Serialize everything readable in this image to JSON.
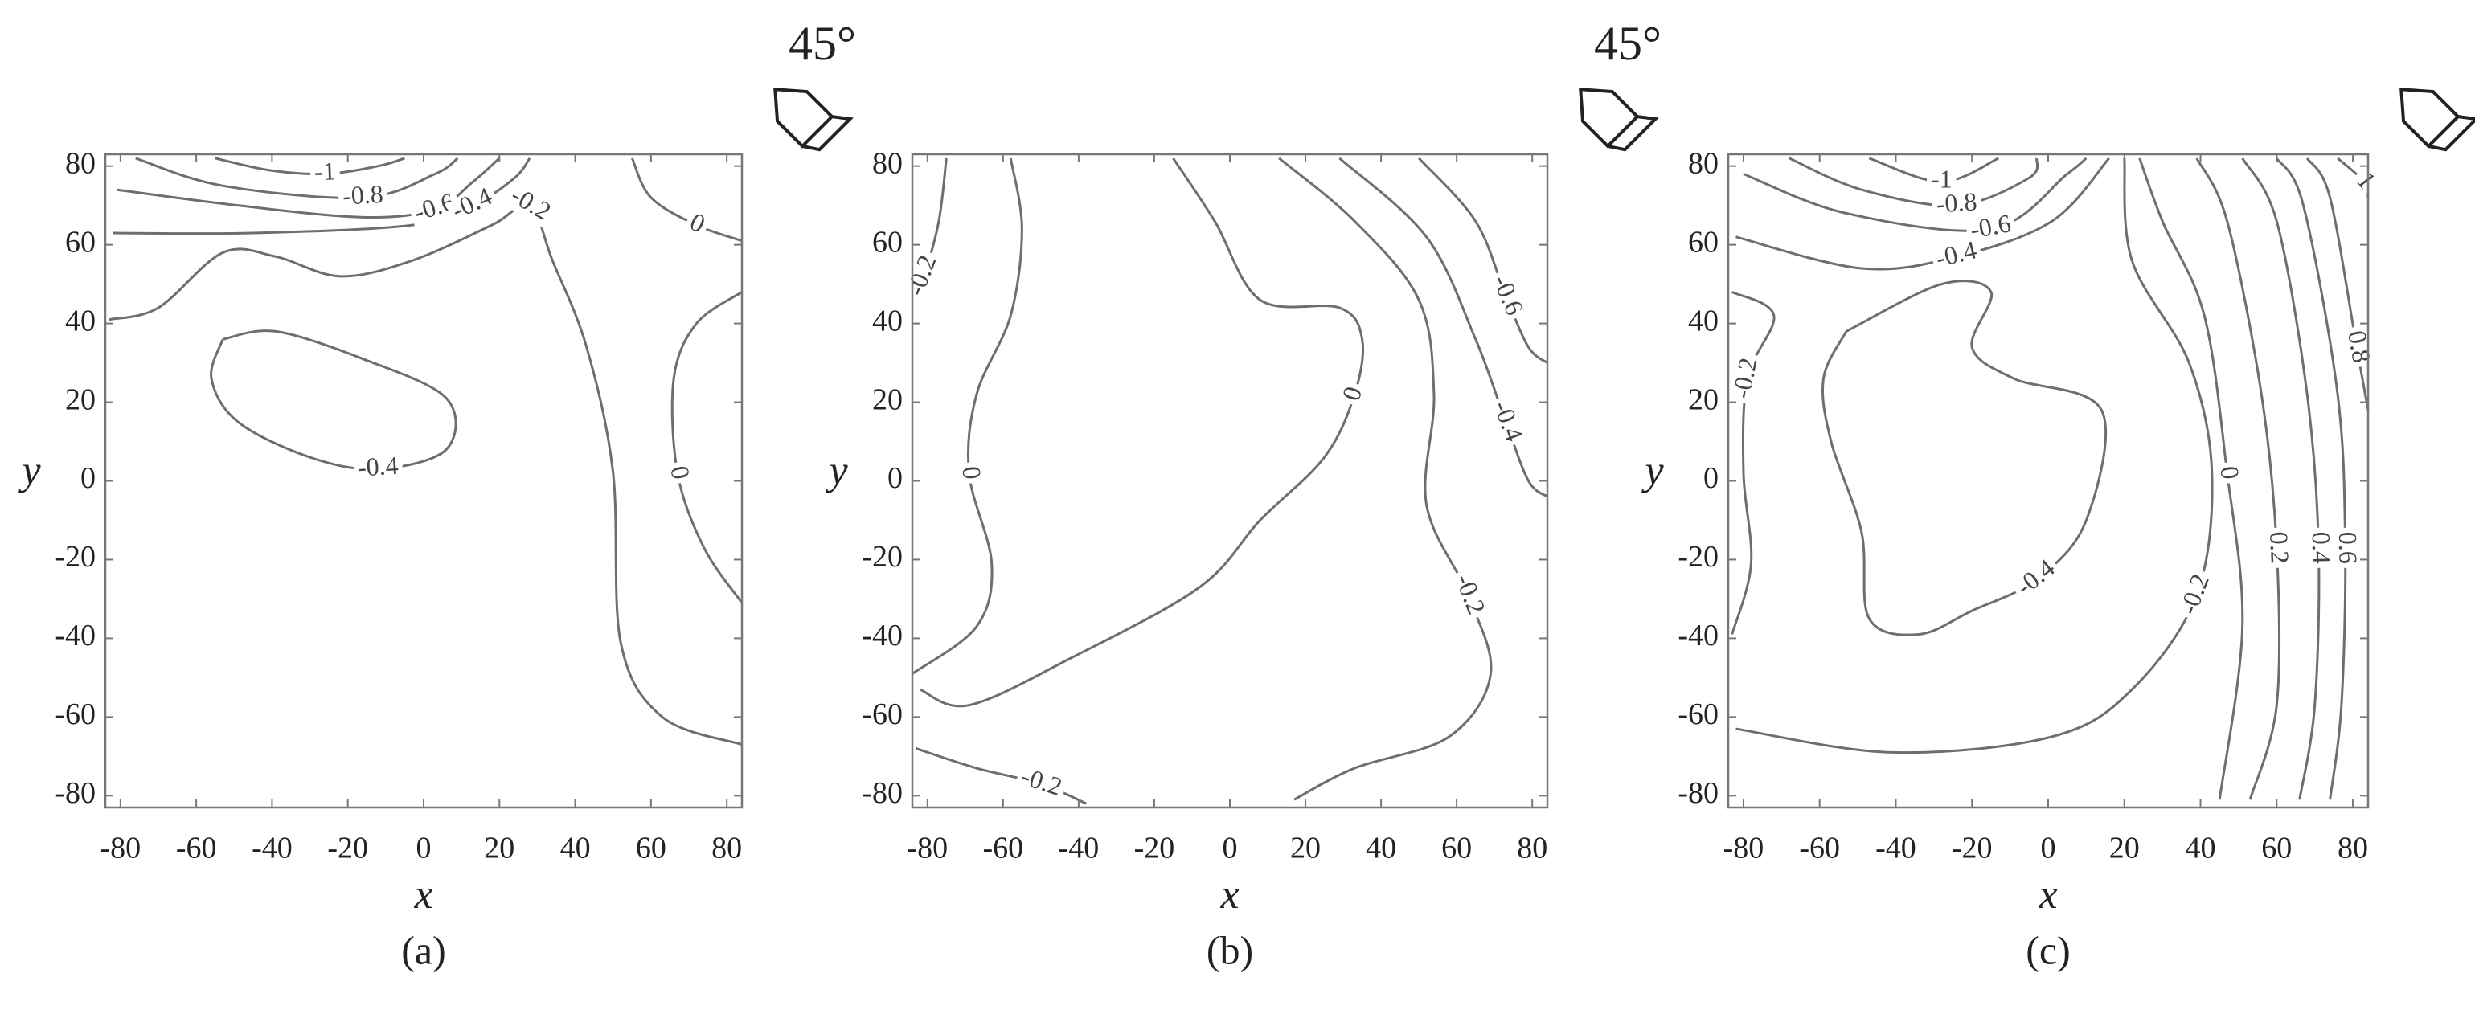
{
  "chart_data": [
    {
      "type": "contour",
      "caption": "(a)",
      "annotation": "45°",
      "x_label": "x",
      "y_label": "y",
      "xlim": [
        -84,
        84
      ],
      "ylim": [
        -83,
        83
      ],
      "xticks": [
        -80,
        -60,
        -40,
        -20,
        0,
        20,
        40,
        60,
        80
      ],
      "yticks": [
        -80,
        -60,
        -40,
        -20,
        0,
        20,
        40,
        60,
        80
      ],
      "color": "#6e6e6e",
      "contours": [
        {
          "level": -1,
          "x": [
            -55,
            -41,
            -26,
            -12,
            -5
          ],
          "y": [
            82,
            79,
            78,
            80,
            82
          ]
        },
        {
          "level": -0.8,
          "x": [
            -76,
            -53,
            -16,
            3,
            9
          ],
          "y": [
            82,
            75,
            72,
            78,
            82
          ]
        },
        {
          "level": -0.6,
          "x": [
            -81,
            -49,
            -16,
            3,
            13,
            20
          ],
          "y": [
            74,
            70,
            67,
            69,
            76,
            82
          ]
        },
        {
          "level": -0.4,
          "x": [
            -82,
            -45,
            -3,
            13,
            24,
            28
          ],
          "y": [
            63,
            63,
            65,
            70,
            77,
            82
          ]
        },
        {
          "level": -0.2,
          "x": [
            -83,
            -70,
            -53,
            -39,
            -22,
            -3,
            18,
            28,
            34,
            43,
            50,
            52,
            63,
            84
          ],
          "y": [
            41,
            44,
            58,
            57,
            52,
            56,
            65,
            70,
            56,
            34,
            2,
            -41,
            -60,
            -67
          ]
        },
        {
          "level": -0.4,
          "x": [
            -53,
            -39,
            -16,
            6,
            6,
            -12,
            -30,
            -49,
            -56,
            -53
          ],
          "y": [
            36,
            38,
            31,
            21,
            8,
            3,
            6,
            15,
            26,
            36
          ]
        },
        {
          "level": 0,
          "x": [
            55,
            60,
            72,
            84
          ],
          "y": [
            82,
            72,
            65,
            61
          ]
        },
        {
          "level": 0,
          "x": [
            84,
            72,
            66,
            67,
            74,
            84
          ],
          "y": [
            48,
            40,
            26,
            2,
            -17,
            -31
          ]
        }
      ]
    },
    {
      "type": "contour",
      "caption": "(b)",
      "annotation": "45°",
      "x_label": "x",
      "y_label": "y",
      "xlim": [
        -84,
        84
      ],
      "ylim": [
        -83,
        83
      ],
      "xticks": [
        -80,
        -60,
        -40,
        -20,
        0,
        20,
        40,
        60,
        80
      ],
      "yticks": [
        -80,
        -60,
        -40,
        -20,
        0,
        20,
        40,
        60,
        80
      ],
      "color": "#6e6e6e",
      "contours": [
        {
          "level": -0.2,
          "x": [
            -75,
            -77,
            -81,
            -84
          ],
          "y": [
            82,
            66,
            52,
            48
          ]
        },
        {
          "level": 0,
          "x": [
            -58,
            -55,
            -58,
            -67,
            -69,
            -63,
            -67,
            -84
          ],
          "y": [
            82,
            64,
            42,
            22,
            2,
            -21,
            -37,
            -49
          ]
        },
        {
          "level": 0,
          "x": [
            -82,
            -69,
            -42,
            -8,
            8,
            25,
            33,
            35,
            29,
            8,
            -4,
            -15
          ],
          "y": [
            -53,
            -57,
            -45,
            -27,
            -10,
            6,
            22,
            36,
            44,
            46,
            66,
            82
          ]
        },
        {
          "level": -0.2,
          "x": [
            13,
            33,
            50,
            54,
            52,
            63,
            69,
            58,
            33,
            17
          ],
          "y": [
            82,
            66,
            46,
            22,
            -6,
            -29,
            -49,
            -65,
            -73,
            -81
          ]
        },
        {
          "level": -0.4,
          "x": [
            29,
            52,
            65,
            73,
            79,
            84
          ],
          "y": [
            82,
            62,
            36,
            15,
            0,
            -4
          ]
        },
        {
          "level": -0.6,
          "x": [
            50,
            65,
            73,
            79,
            84
          ],
          "y": [
            82,
            66,
            47,
            34,
            30
          ]
        },
        {
          "level": -0.2,
          "x": [
            -83,
            -67,
            -50,
            -38
          ],
          "y": [
            -68,
            -73,
            -77,
            -82
          ]
        }
      ]
    },
    {
      "type": "contour",
      "caption": "(c)",
      "x_label": "x",
      "y_label": "y",
      "xlim": [
        -84,
        84
      ],
      "ylim": [
        -83,
        83
      ],
      "xticks": [
        -80,
        -60,
        -40,
        -20,
        0,
        20,
        40,
        60,
        80
      ],
      "yticks": [
        -80,
        -60,
        -40,
        -20,
        0,
        20,
        40,
        60,
        80
      ],
      "color": "#6e6e6e",
      "contours": [
        {
          "level": -1,
          "x": [
            -47,
            -28,
            -13
          ],
          "y": [
            82,
            76,
            82
          ]
        },
        {
          "level": -0.8,
          "x": [
            -68,
            -49,
            -24,
            -5,
            -3
          ],
          "y": [
            82,
            74,
            70,
            77,
            82
          ]
        },
        {
          "level": -0.6,
          "x": [
            -80,
            -53,
            -15,
            5,
            10
          ],
          "y": [
            78,
            68,
            64,
            78,
            82
          ]
        },
        {
          "level": -0.4,
          "x": [
            -82,
            -49,
            -24,
            1,
            16
          ],
          "y": [
            62,
            54,
            57,
            66,
            82
          ]
        },
        {
          "level": -0.4,
          "x": [
            -53,
            -28,
            -15,
            -20,
            -9,
            14,
            10,
            -3,
            -20,
            -34,
            -47,
            -49,
            -57,
            -59,
            -53
          ],
          "y": [
            38,
            50,
            48,
            34,
            26,
            18,
            -10,
            -25,
            -33,
            -39,
            -35,
            -13,
            10,
            26,
            38
          ]
        },
        {
          "level": -0.2,
          "x": [
            -83,
            -78,
            -80,
            -79,
            -72,
            -83
          ],
          "y": [
            -39,
            -21,
            2,
            26,
            42,
            48
          ]
        },
        {
          "level": -0.2,
          "x": [
            20,
            22,
            37,
            43,
            39,
            22,
            1,
            -41,
            -82
          ],
          "y": [
            82,
            56,
            30,
            2,
            -29,
            -53,
            -65,
            -69,
            -63
          ]
        },
        {
          "level": 0,
          "x": [
            24,
            30,
            41,
            47,
            51,
            45
          ],
          "y": [
            82,
            66,
            42,
            2,
            -37,
            -81
          ]
        },
        {
          "level": 0.2,
          "x": [
            39,
            47,
            56,
            60,
            60,
            53
          ],
          "y": [
            82,
            66,
            22,
            -17,
            -57,
            -81
          ]
        },
        {
          "level": 0.4,
          "x": [
            51,
            60,
            68,
            71,
            70,
            66
          ],
          "y": [
            82,
            66,
            22,
            -17,
            -57,
            -81
          ]
        },
        {
          "level": 0.6,
          "x": [
            60,
            67,
            76,
            78,
            77,
            74
          ],
          "y": [
            82,
            70,
            22,
            -17,
            -57,
            -81
          ]
        },
        {
          "level": 0.8,
          "x": [
            68,
            74,
            81,
            84
          ],
          "y": [
            82,
            72,
            34,
            18
          ]
        },
        {
          "level": 1,
          "x": [
            76,
            83,
            84
          ],
          "y": [
            82,
            76,
            72
          ]
        }
      ]
    }
  ]
}
